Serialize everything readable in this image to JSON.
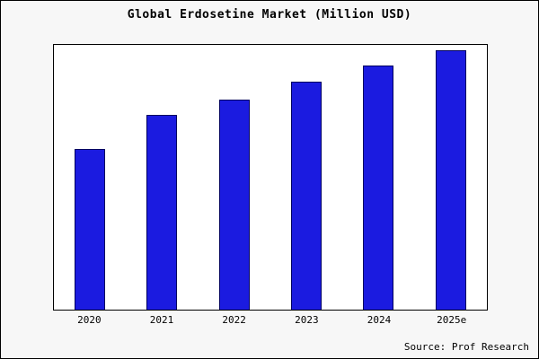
{
  "title": "Global Erdosetine Market (Million USD)",
  "source_note": "Source: Prof Research",
  "chart_data": {
    "type": "bar",
    "categories": [
      "2020",
      "2021",
      "2022",
      "2023",
      "2024",
      "2025e"
    ],
    "values": [
      62,
      75,
      81,
      88,
      94,
      100
    ],
    "title": "Global Erdosetine Market (Million USD)",
    "xlabel": "",
    "ylabel": "",
    "ylim": [
      0,
      102
    ],
    "grid": false,
    "legend": false,
    "bar_color": "#1b1be0",
    "bar_edge_color": "#000060",
    "plot_bg": "#ffffff",
    "figure_bg": "#f7f7f7",
    "annotations": [
      "Source: Prof Research"
    ]
  }
}
